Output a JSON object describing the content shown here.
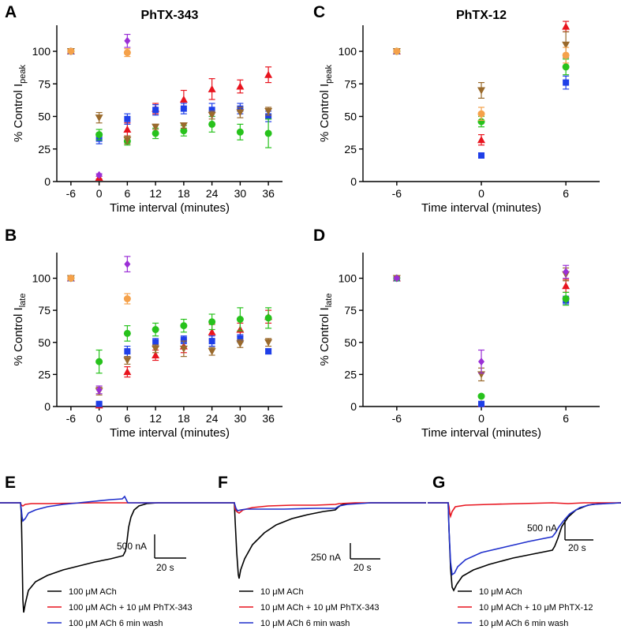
{
  "chart_data": [
    {
      "panel": "A",
      "type": "scatter",
      "title": "PhTX-343",
      "xlabel": "Time interval (minutes)",
      "ylabel_main": "% Control  I",
      "ylabel_sub": "peak",
      "x_ticks": [
        -6,
        0,
        6,
        12,
        18,
        24,
        30,
        36
      ],
      "y_ticks": [
        0,
        25,
        50,
        75,
        100
      ],
      "xlim": [
        -9,
        39
      ],
      "ylim": [
        0,
        120
      ],
      "series": [
        {
          "color": "#e8141e",
          "marker": "triangle",
          "x": [
            -6,
            0,
            6,
            12,
            18,
            24,
            30,
            36
          ],
          "y": [
            100,
            3,
            40,
            56,
            63,
            71,
            73,
            82
          ],
          "err": [
            1,
            1,
            5,
            4,
            7,
            8,
            5,
            6
          ]
        },
        {
          "color": "#1f3fe8",
          "marker": "square",
          "x": [
            -6,
            0,
            6,
            12,
            18,
            24,
            30,
            36
          ],
          "y": [
            100,
            33,
            48,
            55,
            56,
            55,
            56,
            50
          ],
          "err": [
            1,
            4,
            4,
            4,
            4,
            5,
            4,
            4
          ]
        },
        {
          "color": "#27c21c",
          "marker": "circle",
          "x": [
            -6,
            0,
            6,
            12,
            18,
            24,
            30,
            36
          ],
          "y": [
            100,
            36,
            31,
            37,
            39,
            44,
            38,
            37
          ],
          "err": [
            1,
            4,
            3,
            4,
            4,
            6,
            6,
            11
          ]
        },
        {
          "color": "#9a6a2c",
          "marker": "triangle-down",
          "x": [
            -6,
            0,
            6,
            12,
            18,
            24,
            30,
            36
          ],
          "y": [
            100,
            49,
            32,
            42,
            43,
            51,
            53,
            54
          ],
          "err": [
            1,
            4,
            3,
            2,
            2,
            3,
            4,
            3
          ]
        },
        {
          "color": "#9b2fd6",
          "marker": "diamond",
          "x": [
            -6,
            0,
            6
          ],
          "y": [
            100,
            5,
            108
          ],
          "err": [
            1,
            1,
            5
          ]
        },
        {
          "color": "#f5a14a",
          "marker": "circle",
          "x": [
            -6,
            6
          ],
          "y": [
            100,
            99
          ],
          "err": [
            1,
            3
          ]
        }
      ]
    },
    {
      "panel": "B",
      "type": "scatter",
      "xlabel": "Time interval (minutes)",
      "ylabel_main": "% Control  I",
      "ylabel_sub": "late",
      "x_ticks": [
        -6,
        0,
        6,
        12,
        18,
        24,
        30,
        36
      ],
      "y_ticks": [
        0,
        25,
        50,
        75,
        100
      ],
      "xlim": [
        -9,
        39
      ],
      "ylim": [
        0,
        120
      ],
      "series": [
        {
          "color": "#e8141e",
          "marker": "triangle",
          "x": [
            -6,
            0,
            6,
            12,
            18,
            24,
            30,
            36
          ],
          "y": [
            100,
            1,
            27,
            40,
            47,
            58,
            60,
            70
          ],
          "err": [
            1,
            1,
            4,
            4,
            5,
            6,
            5,
            5
          ]
        },
        {
          "color": "#1f3fe8",
          "marker": "square",
          "x": [
            -6,
            0,
            6,
            12,
            18,
            24,
            30,
            36
          ],
          "y": [
            100,
            2,
            43,
            50,
            52,
            51,
            53,
            43
          ],
          "err": [
            1,
            1,
            4,
            3,
            3,
            4,
            3,
            2
          ]
        },
        {
          "color": "#27c21c",
          "marker": "circle",
          "x": [
            -6,
            0,
            6,
            12,
            18,
            24,
            30,
            36
          ],
          "y": [
            100,
            35,
            57,
            60,
            63,
            66,
            68,
            69
          ],
          "err": [
            1,
            9,
            6,
            5,
            5,
            6,
            9,
            8
          ]
        },
        {
          "color": "#9a6a2c",
          "marker": "triangle-down",
          "x": [
            -6,
            0,
            6,
            12,
            18,
            24,
            30,
            36
          ],
          "y": [
            100,
            12,
            36,
            45,
            45,
            43,
            49,
            50
          ],
          "err": [
            1,
            3,
            3,
            3,
            6,
            3,
            3,
            3
          ]
        },
        {
          "color": "#9b2fd6",
          "marker": "diamond",
          "x": [
            -6,
            0,
            6
          ],
          "y": [
            100,
            13,
            111
          ],
          "err": [
            1,
            3,
            6
          ]
        },
        {
          "color": "#f5a14a",
          "marker": "circle",
          "x": [
            -6,
            6
          ],
          "y": [
            100,
            84
          ],
          "err": [
            1,
            4
          ]
        }
      ]
    },
    {
      "panel": "C",
      "type": "scatter",
      "title": "PhTX-12",
      "xlabel": "Time interval (minutes)",
      "ylabel_main": "% Control  I",
      "ylabel_sub": "peak",
      "x_ticks": [
        -6,
        0,
        6
      ],
      "y_ticks": [
        0,
        25,
        50,
        75,
        100
      ],
      "xlim": [
        -8.4,
        8.4
      ],
      "ylim": [
        0,
        120
      ],
      "series": [
        {
          "color": "#e8141e",
          "marker": "triangle",
          "x": [
            -6,
            0,
            6
          ],
          "y": [
            100,
            32,
            119
          ],
          "err": [
            1,
            4,
            4
          ]
        },
        {
          "color": "#1f3fe8",
          "marker": "square",
          "x": [
            -6,
            0,
            6
          ],
          "y": [
            100,
            20,
            76
          ],
          "err": [
            1,
            2,
            5
          ]
        },
        {
          "color": "#27c21c",
          "marker": "circle",
          "x": [
            -6,
            0,
            6
          ],
          "y": [
            100,
            46,
            88
          ],
          "err": [
            1,
            4,
            6
          ]
        },
        {
          "color": "#9a6a2c",
          "marker": "triangle-down",
          "x": [
            -6,
            0,
            6
          ],
          "y": [
            100,
            70,
            105
          ],
          "err": [
            1,
            6,
            10
          ]
        },
        {
          "color": "#f5a14a",
          "marker": "circle",
          "x": [
            -6,
            0,
            6
          ],
          "y": [
            100,
            52,
            97
          ],
          "err": [
            1,
            5,
            6
          ]
        }
      ]
    },
    {
      "panel": "D",
      "type": "scatter",
      "xlabel": "Time interval (minutes)",
      "ylabel_main": "% Control  I",
      "ylabel_sub": "late",
      "x_ticks": [
        -6,
        0,
        6
      ],
      "y_ticks": [
        0,
        25,
        50,
        75,
        100
      ],
      "xlim": [
        -8.4,
        8.4
      ],
      "ylim": [
        0,
        120
      ],
      "series": [
        {
          "color": "#e8141e",
          "marker": "triangle",
          "x": [
            -6,
            0,
            6
          ],
          "y": [
            100,
            2,
            94
          ],
          "err": [
            1,
            1,
            5
          ]
        },
        {
          "color": "#1f3fe8",
          "marker": "square",
          "x": [
            -6,
            0,
            6
          ],
          "y": [
            100,
            2,
            83
          ],
          "err": [
            1,
            1,
            3
          ]
        },
        {
          "color": "#27c21c",
          "marker": "circle",
          "x": [
            -6,
            0,
            6
          ],
          "y": [
            100,
            8,
            84
          ],
          "err": [
            1,
            1,
            5
          ]
        },
        {
          "color": "#9a6a2c",
          "marker": "triangle-down",
          "x": [
            -6,
            0,
            6
          ],
          "y": [
            100,
            25,
            103
          ],
          "err": [
            1,
            5,
            5
          ]
        },
        {
          "color": "#9b2fd6",
          "marker": "diamond",
          "x": [
            -6,
            0,
            6
          ],
          "y": [
            100,
            35,
            105
          ],
          "err": [
            1,
            9,
            5
          ]
        }
      ]
    },
    {
      "panel": "E",
      "type": "line",
      "scalebar": {
        "current": "500 nA",
        "time": "20 s"
      },
      "legend": [
        "100 μM ACh",
        "100 μM ACh + 10 μM PhTX-343",
        "100 μM ACh 6 min wash"
      ],
      "colors": [
        "#000000",
        "#e8141e",
        "#1f2fcc"
      ]
    },
    {
      "panel": "F",
      "type": "line",
      "scalebar": {
        "current": "250 nA",
        "time": "20 s"
      },
      "legend": [
        "10 μM ACh",
        "10 μM ACh + 10 μM PhTX-343",
        "10 μM ACh 6 min wash"
      ],
      "colors": [
        "#000000",
        "#e8141e",
        "#1f2fcc"
      ]
    },
    {
      "panel": "G",
      "type": "line",
      "scalebar": {
        "current": "500 nA",
        "time": "20 s"
      },
      "legend": [
        "10 μM ACh",
        "10 μM ACh + 10 μM PhTX-12",
        "10 μM ACh 6 min wash"
      ],
      "colors": [
        "#000000",
        "#e8141e",
        "#1f2fcc"
      ]
    }
  ]
}
